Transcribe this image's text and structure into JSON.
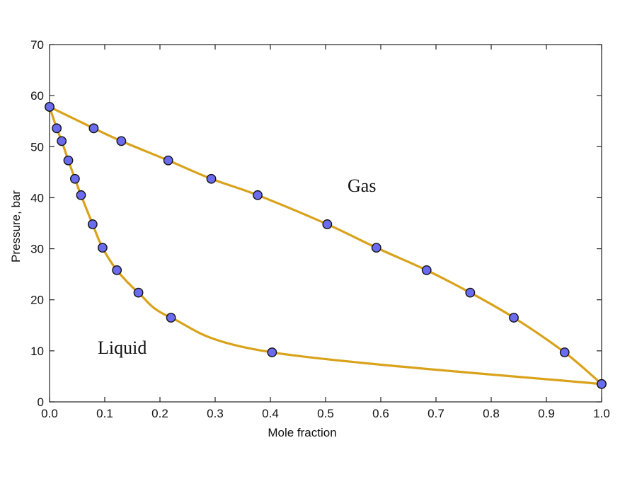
{
  "chart_data": {
    "type": "scatter",
    "xlabel": "Mole fraction",
    "ylabel": "Pressure, bar",
    "xlim": [
      0.0,
      1.0
    ],
    "ylim": [
      0,
      70
    ],
    "x_ticks": [
      "0.0",
      "0.1",
      "0.2",
      "0.3",
      "0.4",
      "0.5",
      "0.6",
      "0.7",
      "0.8",
      "0.9",
      "1.0"
    ],
    "y_ticks": [
      "0",
      "10",
      "20",
      "30",
      "40",
      "50",
      "60",
      "70"
    ],
    "grid": false,
    "region_labels": [
      "Gas",
      "Liquid"
    ],
    "series": [
      {
        "curve_color": "#d9a21a",
        "marker_color": "#6b6bef",
        "points": [
          {
            "x": 0.0,
            "y": 57.8
          },
          {
            "x": 0.08,
            "y": 53.6
          },
          {
            "x": 0.13,
            "y": 51.1
          },
          {
            "x": 0.215,
            "y": 47.3
          },
          {
            "x": 0.293,
            "y": 43.7
          },
          {
            "x": 0.377,
            "y": 40.5
          },
          {
            "x": 0.503,
            "y": 34.8
          },
          {
            "x": 0.592,
            "y": 30.2
          },
          {
            "x": 0.683,
            "y": 25.8
          },
          {
            "x": 0.762,
            "y": 21.4
          },
          {
            "x": 0.841,
            "y": 16.5
          },
          {
            "x": 0.933,
            "y": 9.7
          },
          {
            "x": 1.0,
            "y": 3.5
          }
        ]
      },
      {
        "curve_color": "#d9a21a",
        "marker_color": "#6b6bef",
        "points": [
          {
            "x": 0.0,
            "y": 57.8
          },
          {
            "x": 0.013,
            "y": 53.6
          },
          {
            "x": 0.022,
            "y": 51.1
          },
          {
            "x": 0.034,
            "y": 47.3
          },
          {
            "x": 0.046,
            "y": 43.7
          },
          {
            "x": 0.057,
            "y": 40.5
          },
          {
            "x": 0.078,
            "y": 34.8
          },
          {
            "x": 0.096,
            "y": 30.2
          },
          {
            "x": 0.122,
            "y": 25.8
          },
          {
            "x": 0.161,
            "y": 21.4
          },
          {
            "x": 0.22,
            "y": 16.5
          },
          {
            "x": 0.403,
            "y": 9.7
          },
          {
            "x": 1.0,
            "y": 3.5
          }
        ]
      }
    ]
  }
}
